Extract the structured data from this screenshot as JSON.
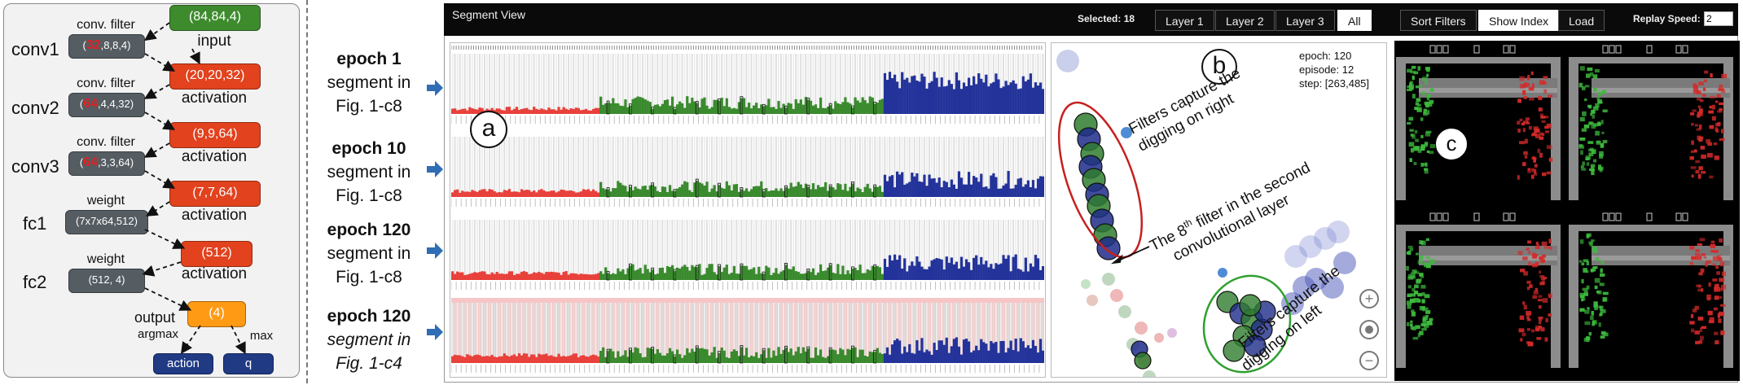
{
  "network": {
    "layers": [
      {
        "name": "conv1",
        "filter_caption": "conv. filter",
        "filter_highlight": "32",
        "filter_rest": ",8,8,4)",
        "filter_open": "(",
        "output_caption": "input",
        "output": "(84,84,4)"
      },
      {
        "name": "conv2",
        "filter_caption": "conv. filter",
        "filter_highlight": "64",
        "filter_rest": ",4,4,32)",
        "filter_open": "(",
        "output_caption": "activation",
        "output": "(20,20,32)"
      },
      {
        "name": "conv3",
        "filter_caption": "conv. filter",
        "filter_highlight": "64",
        "filter_rest": ",3,3,64)",
        "filter_open": "(",
        "output_caption": "activation",
        "output": "(9,9,64)"
      },
      {
        "name": "fc1",
        "filter_caption": "weight",
        "filter_text": "(7x7x64,512)",
        "output_caption": "activation",
        "output": "(7,7,64)"
      },
      {
        "name": "fc2",
        "filter_caption": "weight",
        "filter_text": "(512, 4)",
        "output_caption": "activation",
        "output": "(512)"
      }
    ],
    "output_caption": "output",
    "output_value": "(4)",
    "argmax_label": "argmax",
    "max_label": "max",
    "action_label": "action",
    "q_label": "q"
  },
  "epochs": [
    {
      "epoch": "epoch 1",
      "line2": "segment  in",
      "line3": "Fig. 1-c8",
      "italic": false
    },
    {
      "epoch": "epoch 10",
      "line2": "segment in",
      "line3": "Fig. 1-c8",
      "italic": false
    },
    {
      "epoch": "epoch 120",
      "line2": "segment in",
      "line3": "Fig. 1-c8",
      "italic": false
    },
    {
      "epoch": "epoch 120",
      "line2": "segment in",
      "line3": "Fig. 1-c4",
      "italic": true
    }
  ],
  "toolbar": {
    "title": "Segment View",
    "selected": "Selected: 18",
    "layers": [
      "Layer 1",
      "Layer 2",
      "Layer 3",
      "All"
    ],
    "active_layer": "All",
    "sort_filters": "Sort Filters",
    "show_index": "Show Index",
    "load": "Load",
    "replay_speed_label": "Replay Speed:",
    "replay_speed_value": "2"
  },
  "panel_labels": {
    "a": "a",
    "b": "b",
    "c": "c"
  },
  "scatter_info": {
    "epoch": "epoch: 120",
    "episode": "episode: 12",
    "step": "step: [263,485]"
  },
  "annotations": {
    "right_line1": "Filters capture the",
    "right_line2": "digging on right",
    "filter8_pre": "The 8",
    "filter8_sup": "th",
    "filter8_post": " filter in the second",
    "filter8_line2": "convolutional layer",
    "left_line1": "Filters capture the",
    "left_line2": "digging on left"
  },
  "zoom": {
    "plus": "+",
    "reset": "•",
    "minus": "−"
  },
  "colors": {
    "layer1": "#e8403a",
    "layer2": "#3a8a2e",
    "layer3": "#23339a",
    "highlight_row": "#f6c6c6"
  },
  "game_hud": "033 5 1"
}
